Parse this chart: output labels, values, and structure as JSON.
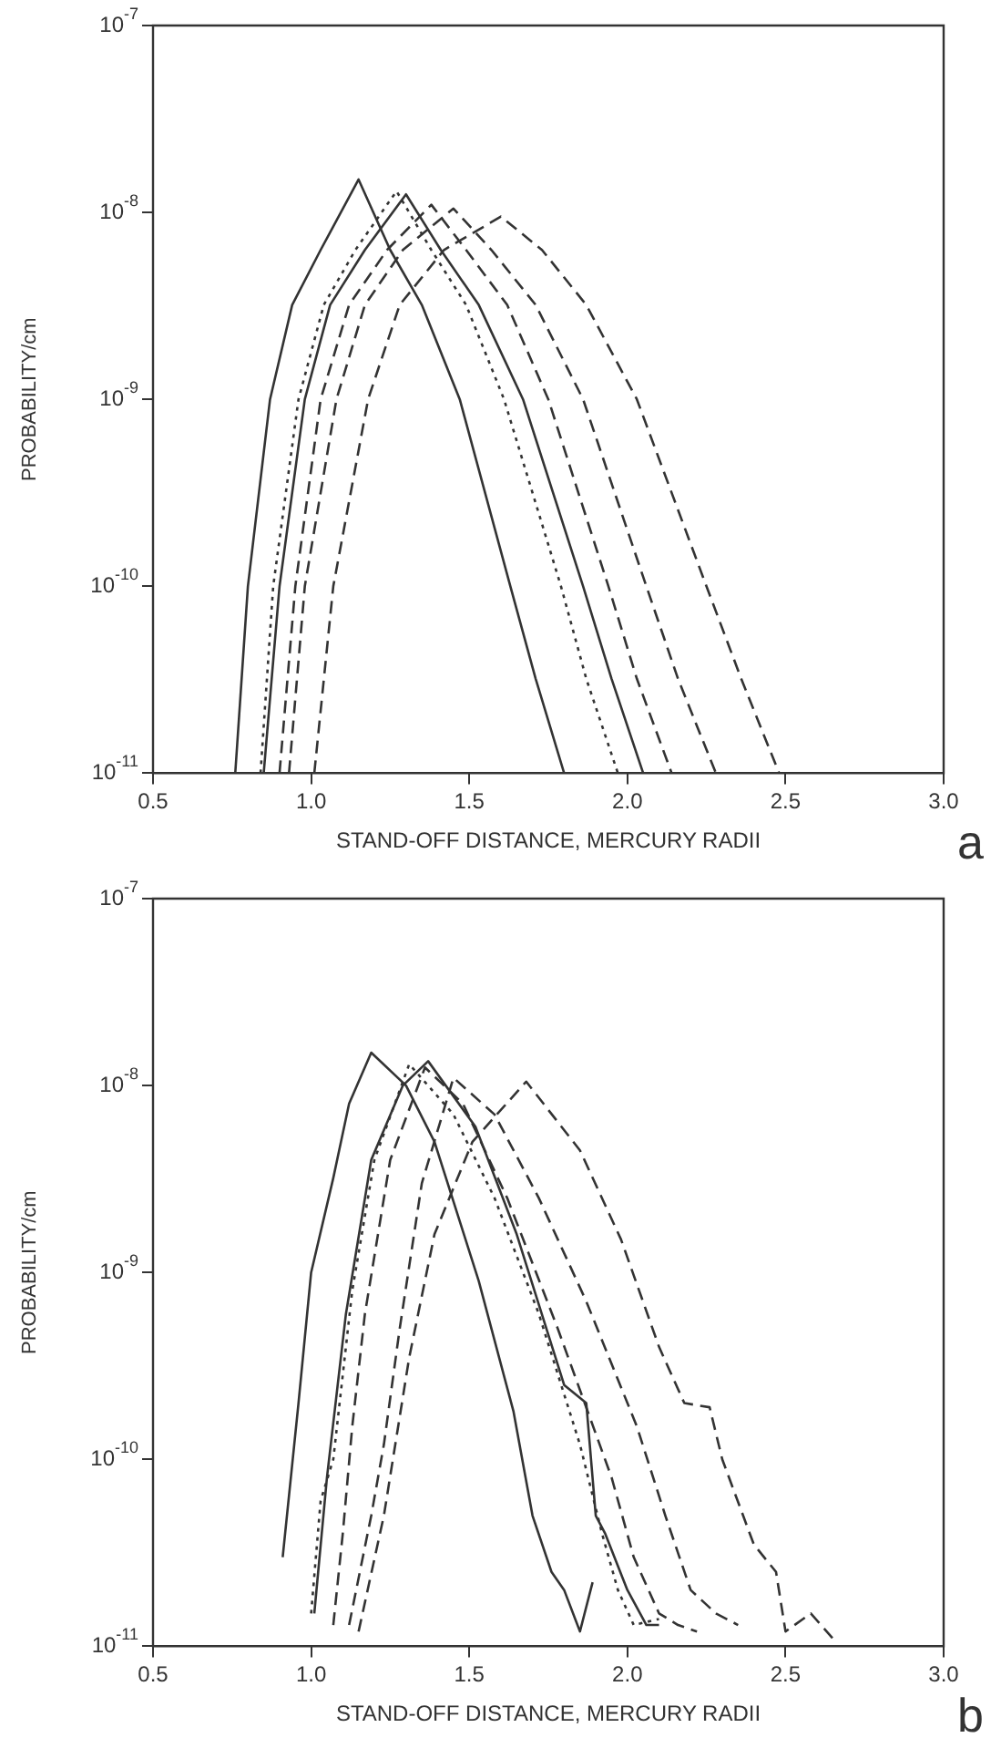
{
  "chart_data": [
    {
      "type": "line",
      "xlabel": "STAND-OFF DISTANCE, MERCURY RADII",
      "ylabel": "PROBABILITY/cm",
      "annotations": [
        "a"
      ],
      "log": "y",
      "legend": false,
      "xlim": [
        0.5,
        3.0
      ],
      "xticks": [
        0.5,
        {
          "value": 1,
          "label": "1.0"
        },
        1.5,
        {
          "value": 2,
          "label": "2.0"
        },
        2.5,
        {
          "value": 3,
          "label": "3.0"
        }
      ],
      "ylim": [
        1e-11,
        1e-07
      ],
      "yticks": [
        {
          "value": 1e-11,
          "label": "10$^{-11}$"
        },
        {
          "value": 1e-10,
          "label": "10$^{-10}$"
        },
        {
          "value": 1e-09,
          "label": "10$^{-9}$"
        },
        {
          "value": 1e-08,
          "label": "10$^{-8}$"
        },
        {
          "value": 1e-07,
          "label": "10$^{-7}$"
        }
      ],
      "series": [
        {
          "color": "#333333",
          "line_style": "solid",
          "x": [
            0.76,
            0.8,
            0.87,
            0.94,
            1.03,
            1.15,
            1.25,
            1.35,
            1.47,
            1.63,
            1.71,
            1.8
          ],
          "values": [
            1e-11,
            1e-10,
            1e-09,
            3.2e-09,
            6.3e-09,
            1.5e-08,
            6.3e-09,
            3.2e-09,
            1e-09,
            1e-10,
            3.2e-11,
            1e-11
          ]
        },
        {
          "color": "#333333",
          "line_style": "dotted",
          "x": [
            0.84,
            0.88,
            0.96,
            1.04,
            1.14,
            1.27,
            1.38,
            1.49,
            1.61,
            1.79,
            1.87,
            1.97
          ],
          "values": [
            1e-11,
            1e-10,
            1e-09,
            3.2e-09,
            6.3e-09,
            1.3e-08,
            6.3e-09,
            3.2e-09,
            1e-09,
            1e-10,
            3.2e-11,
            1e-11
          ]
        },
        {
          "color": "#333333",
          "line_style": "solid",
          "x": [
            0.85,
            0.9,
            0.98,
            1.06,
            1.17,
            1.3,
            1.41,
            1.53,
            1.67,
            1.86,
            1.95,
            2.05
          ],
          "values": [
            1e-11,
            1e-10,
            1e-09,
            3.2e-09,
            6.3e-09,
            1.25e-08,
            6.3e-09,
            3.2e-09,
            1e-09,
            1e-10,
            3.2e-11,
            1e-11
          ]
        },
        {
          "color": "#333333",
          "line_style": "dashed",
          "x": [
            0.9,
            0.95,
            1.03,
            1.12,
            1.24,
            1.38,
            1.49,
            1.62,
            1.75,
            1.94,
            2.03,
            2.14
          ],
          "values": [
            1e-11,
            1e-10,
            1e-09,
            3.2e-09,
            6.3e-09,
            1.1e-08,
            6.3e-09,
            3.2e-09,
            1e-09,
            1e-10,
            3.2e-11,
            1e-11
          ]
        },
        {
          "color": "#333333",
          "line_style": "dashed",
          "x": [
            0.93,
            0.98,
            1.08,
            1.17,
            1.29,
            1.45,
            1.57,
            1.71,
            1.86,
            2.06,
            2.16,
            2.28
          ],
          "values": [
            1e-11,
            1e-10,
            1e-09,
            3.2e-09,
            6.3e-09,
            1.05e-08,
            6.3e-09,
            3.2e-09,
            1e-09,
            1e-10,
            3.2e-11,
            1e-11
          ]
        },
        {
          "color": "#333333",
          "line_style": "dashed",
          "x": [
            1.01,
            1.07,
            1.18,
            1.28,
            1.42,
            1.6,
            1.73,
            1.87,
            2.03,
            2.25,
            2.36,
            2.48
          ],
          "values": [
            1e-11,
            1e-10,
            1e-09,
            3.2e-09,
            6.3e-09,
            9.5e-09,
            6.3e-09,
            3.2e-09,
            1e-09,
            1e-10,
            3.2e-11,
            1e-11
          ]
        }
      ]
    },
    {
      "type": "line",
      "xlabel": "STAND-OFF DISTANCE, MERCURY RADII",
      "ylabel": "PROBABILITY/cm",
      "annotations": [
        "b"
      ],
      "log": "y",
      "legend": false,
      "xlim": [
        0.5,
        3.0
      ],
      "xticks": [
        0.5,
        {
          "value": 1,
          "label": "1.0"
        },
        1.5,
        {
          "value": 2,
          "label": "2.0"
        },
        2.5,
        {
          "value": 3,
          "label": "3.0"
        }
      ],
      "ylim": [
        1e-11,
        1e-07
      ],
      "yticks": [
        {
          "value": 1e-11,
          "label": "10$^{-11}$"
        },
        {
          "value": 1e-10,
          "label": "10$^{-10}$"
        },
        {
          "value": 1e-09,
          "label": "10$^{-9}$"
        },
        {
          "value": 1e-08,
          "label": "10$^{-8}$"
        },
        {
          "value": 1e-07,
          "label": "10$^{-7}$"
        }
      ],
      "series": [
        {
          "color": "#333333",
          "line_style": "solid",
          "x": [
            0.91,
            0.96,
            1.0,
            1.07,
            1.12,
            1.19,
            1.3,
            1.39,
            1.53,
            1.64,
            1.7,
            1.76,
            1.8,
            1.85,
            1.89
          ],
          "values": [
            3e-11,
            2e-10,
            1e-09,
            3.2e-09,
            8e-09,
            1.5e-08,
            1e-08,
            5e-09,
            9e-10,
            1.8e-10,
            5e-11,
            2.5e-11,
            2e-11,
            1.2e-11,
            2.2e-11
          ]
        },
        {
          "color": "#333333",
          "line_style": "dotted",
          "x": [
            1.0,
            1.03,
            1.07,
            1.13,
            1.2,
            1.31,
            1.45,
            1.58,
            1.72,
            1.85,
            1.92,
            1.97,
            2.02,
            2.1
          ],
          "values": [
            1.5e-11,
            6e-11,
            1e-10,
            8e-10,
            4e-09,
            1.3e-08,
            7e-09,
            2.5e-09,
            6e-10,
            1.2e-10,
            4e-11,
            2e-11,
            1.3e-11,
            1.4e-11
          ]
        },
        {
          "color": "#333333",
          "line_style": "solid",
          "x": [
            1.01,
            1.05,
            1.11,
            1.19,
            1.29,
            1.37,
            1.52,
            1.65,
            1.8,
            1.87,
            1.9,
            1.93,
            2.0,
            2.06,
            2.1
          ],
          "values": [
            1.5e-11,
            8e-11,
            6e-10,
            4e-09,
            1e-08,
            1.35e-08,
            6e-09,
            1.6e-09,
            2.5e-10,
            2e-10,
            5e-11,
            4e-11,
            2e-11,
            1.3e-11,
            1.3e-11
          ]
        },
        {
          "color": "#333333",
          "line_style": "dashed",
          "x": [
            1.07,
            1.1,
            1.13,
            1.17,
            1.25,
            1.36,
            1.48,
            1.62,
            1.78,
            1.95,
            2.02,
            2.1,
            2.16,
            2.22
          ],
          "values": [
            1.3e-11,
            4e-11,
            1.5e-10,
            6e-10,
            4e-09,
            1.25e-08,
            8e-09,
            2.5e-09,
            5e-10,
            8e-11,
            3e-11,
            1.5e-11,
            1.3e-11,
            1.2e-11
          ]
        },
        {
          "color": "#333333",
          "line_style": "dashed",
          "x": [
            1.12,
            1.19,
            1.23,
            1.28,
            1.35,
            1.45,
            1.58,
            1.72,
            1.87,
            2.03,
            2.12,
            2.2,
            2.28,
            2.35
          ],
          "values": [
            1.3e-11,
            5e-11,
            1.2e-10,
            5e-10,
            3e-09,
            1.1e-08,
            7e-09,
            2.5e-09,
            7e-10,
            1.5e-10,
            5e-11,
            2e-11,
            1.5e-11,
            1.3e-11
          ]
        },
        {
          "color": "#333333",
          "line_style": "dashed",
          "x": [
            1.15,
            1.23,
            1.31,
            1.39,
            1.51,
            1.68,
            1.85,
            1.98,
            2.1,
            2.18,
            2.26,
            2.3,
            2.4,
            2.47,
            2.5,
            2.58,
            2.65
          ],
          "values": [
            1.2e-11,
            5e-11,
            3.5e-10,
            1.6e-09,
            5e-09,
            1.05e-08,
            4.5e-09,
            1.5e-09,
            4e-10,
            2e-10,
            1.9e-10,
            1e-10,
            3.5e-11,
            2.5e-11,
            1.2e-11,
            1.5e-11,
            1.1e-11
          ]
        }
      ]
    }
  ]
}
